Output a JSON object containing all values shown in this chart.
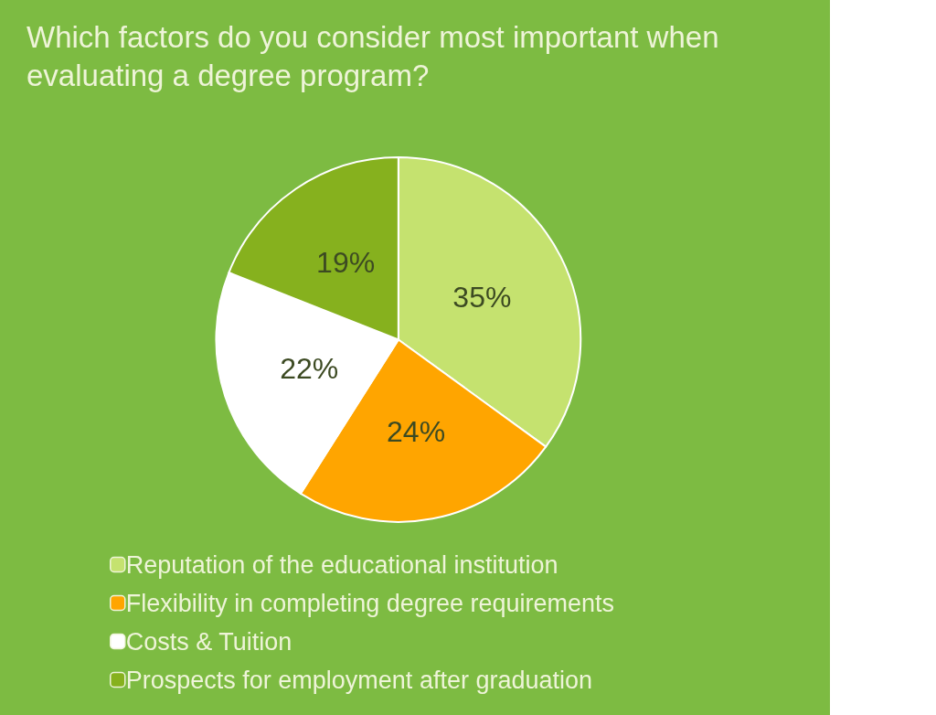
{
  "chart_data": {
    "type": "pie",
    "title": "Which factors do you consider most important when evaluating a degree program?",
    "categories": [
      "Reputation of the educational institution",
      "Flexibility in completing degree requirements",
      "Costs & Tuition",
      "Prospects for employment after graduation"
    ],
    "values": [
      35,
      24,
      22,
      19
    ],
    "value_labels": [
      "35%",
      "24%",
      "22%",
      "19%"
    ],
    "colors": [
      "#c5e26f",
      "#ffa500",
      "#ffffff",
      "#86b11e"
    ],
    "legend": "bottom left"
  }
}
